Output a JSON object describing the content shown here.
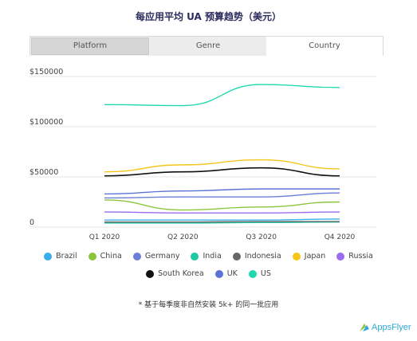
{
  "title": "每应用平均 UA 预算趋势（美元）",
  "tabs": [
    {
      "label": "Platform",
      "active": false
    },
    {
      "label": "Genre",
      "active": false
    },
    {
      "label": "Country",
      "active": true
    }
  ],
  "footnote": "* 基于每季度非自然安装 5k+ 的同一批应用",
  "brand": "AppsFlyer",
  "chart_data": {
    "type": "line",
    "categories": [
      "Q1 2020",
      "Q2 2020",
      "Q3 2020",
      "Q4 2020"
    ],
    "y_ticks": [
      0,
      50000,
      100000,
      150000
    ],
    "y_tick_labels": [
      "0",
      "$50000",
      "$100000",
      "$150000"
    ],
    "ylim": [
      0,
      150000
    ],
    "grid": true,
    "legend_position": "bottom",
    "series": [
      {
        "name": "Brazil",
        "color": "#3aaee8",
        "values": [
          7000,
          7000,
          7000,
          8000
        ]
      },
      {
        "name": "China",
        "color": "#8cc63f",
        "values": [
          27000,
          17000,
          20000,
          25000
        ]
      },
      {
        "name": "Germany",
        "color": "#6b7fd7",
        "values": [
          29000,
          30000,
          30000,
          34000
        ]
      },
      {
        "name": "India",
        "color": "#1ec8a5",
        "values": [
          4000,
          4000,
          4500,
          5000
        ]
      },
      {
        "name": "Indonesia",
        "color": "#666666",
        "values": [
          5000,
          5000,
          5500,
          5500
        ]
      },
      {
        "name": "Japan",
        "color": "#f5c518",
        "values": [
          55000,
          62000,
          67000,
          58000
        ]
      },
      {
        "name": "Russia",
        "color": "#9b6cf0",
        "values": [
          15000,
          14000,
          14000,
          15000
        ]
      },
      {
        "name": "South Korea",
        "color": "#111111",
        "values": [
          51000,
          55000,
          59000,
          51000
        ]
      },
      {
        "name": "UK",
        "color": "#5b73d6",
        "values": [
          33000,
          36000,
          38000,
          38000
        ]
      },
      {
        "name": "US",
        "color": "#1fd8b0",
        "values": [
          122000,
          121000,
          142000,
          139000
        ]
      }
    ]
  }
}
